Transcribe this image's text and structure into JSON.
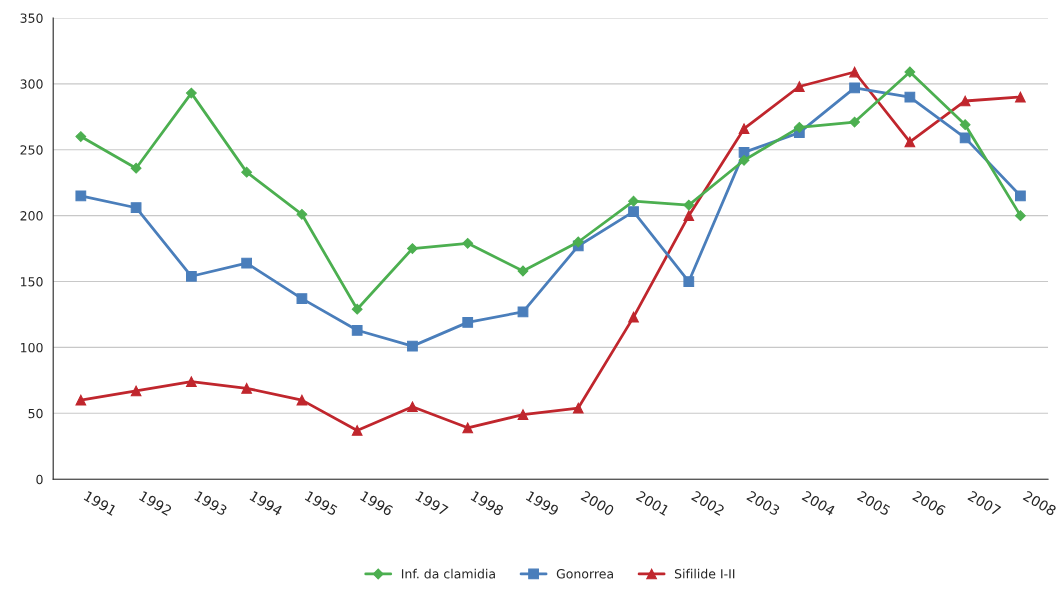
{
  "chart_data": {
    "type": "line",
    "categories": [
      "1991",
      "1992",
      "1993",
      "1994",
      "1995",
      "1996",
      "1997",
      "1998",
      "1999",
      "2000",
      "2001",
      "2002",
      "2003",
      "2004",
      "2005",
      "2006",
      "2007",
      "2008"
    ],
    "series": [
      {
        "name": "Inf. da clamidia",
        "color": "#4caf50",
        "marker": "diamond",
        "values": [
          260,
          236,
          293,
          233,
          201,
          129,
          175,
          179,
          158,
          180,
          211,
          208,
          242,
          267,
          271,
          309,
          269,
          200
        ]
      },
      {
        "name": "Gonorrea",
        "color": "#4a7ebb",
        "marker": "square",
        "values": [
          215,
          206,
          154,
          164,
          137,
          113,
          101,
          119,
          127,
          177,
          203,
          150,
          248,
          263,
          297,
          290,
          259,
          215
        ]
      },
      {
        "name": "Sifilide I-II",
        "color": "#c0262d",
        "marker": "triangle",
        "values": [
          60,
          67,
          74,
          69,
          60,
          37,
          55,
          39,
          49,
          54,
          123,
          200,
          266,
          298,
          309,
          256,
          287,
          290
        ]
      }
    ],
    "ylim": [
      0,
      350
    ],
    "yticks": [
      0,
      50,
      100,
      150,
      200,
      250,
      300,
      350
    ],
    "grid": "y",
    "legend": "bottom",
    "line_style": "solid"
  }
}
